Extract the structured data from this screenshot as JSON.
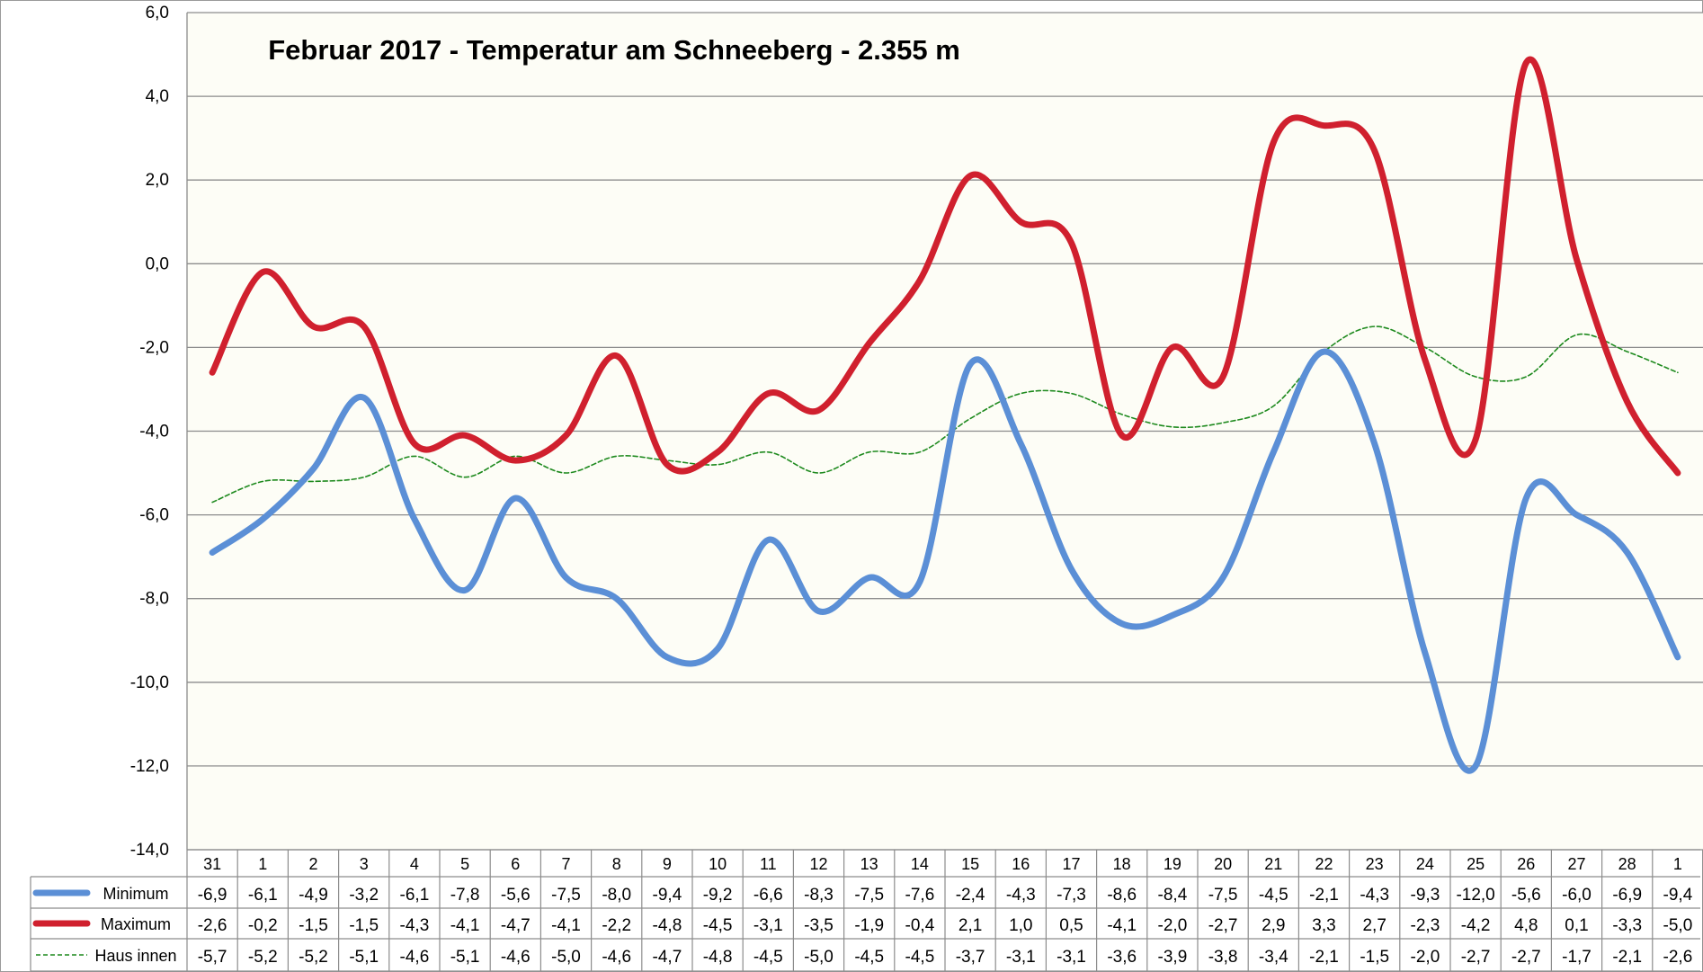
{
  "chart_data": {
    "type": "line",
    "title": "Februar 2017 - Temperatur am Schneeberg - 2.355 m",
    "xlabel": "",
    "ylabel": "",
    "ylim": [
      -14,
      6
    ],
    "yticks": [
      "6,0",
      "4,0",
      "2,0",
      "0,0",
      "-2,0",
      "-4,0",
      "-6,0",
      "-8,0",
      "-10,0",
      "-12,0",
      "-14,0"
    ],
    "grid": true,
    "legend": "table-below",
    "categories": [
      "31",
      "1",
      "2",
      "3",
      "4",
      "5",
      "6",
      "7",
      "8",
      "9",
      "10",
      "11",
      "12",
      "13",
      "14",
      "15",
      "16",
      "17",
      "18",
      "19",
      "20",
      "21",
      "22",
      "23",
      "24",
      "25",
      "26",
      "27",
      "28",
      "1"
    ],
    "series": [
      {
        "name": "Minimum",
        "color": "#5b8fd6",
        "values": [
          -6.9,
          -6.1,
          -4.9,
          -3.2,
          -6.1,
          -7.8,
          -5.6,
          -7.5,
          -8.0,
          -9.4,
          -9.2,
          -6.6,
          -8.3,
          -7.5,
          -7.6,
          -2.4,
          -4.3,
          -7.3,
          -8.6,
          -8.4,
          -7.5,
          -4.5,
          -2.1,
          -4.3,
          -9.3,
          -12.0,
          -5.6,
          -6.0,
          -6.9,
          -9.4
        ],
        "labels": [
          "-6,9",
          "-6,1",
          "-4,9",
          "-3,2",
          "-6,1",
          "-7,8",
          "-5,6",
          "-7,5",
          "-8,0",
          "-9,4",
          "-9,2",
          "-6,6",
          "-8,3",
          "-7,5",
          "-7,6",
          "-2,4",
          "-4,3",
          "-7,3",
          "-8,6",
          "-8,4",
          "-7,5",
          "-4,5",
          "-2,1",
          "-4,3",
          "-9,3",
          "-12,0",
          "-5,6",
          "-6,0",
          "-6,9",
          "-9,4"
        ]
      },
      {
        "name": "Maximum",
        "color": "#d0202e",
        "values": [
          -2.6,
          -0.2,
          -1.5,
          -1.5,
          -4.3,
          -4.1,
          -4.7,
          -4.1,
          -2.2,
          -4.8,
          -4.5,
          -3.1,
          -3.5,
          -1.9,
          -0.4,
          2.1,
          1.0,
          0.5,
          -4.1,
          -2.0,
          -2.7,
          2.9,
          3.3,
          2.7,
          -2.3,
          -4.2,
          4.8,
          0.1,
          -3.3,
          -5.0
        ],
        "labels": [
          "-2,6",
          "-0,2",
          "-1,5",
          "-1,5",
          "-4,3",
          "-4,1",
          "-4,7",
          "-4,1",
          "-2,2",
          "-4,8",
          "-4,5",
          "-3,1",
          "-3,5",
          "-1,9",
          "-0,4",
          "2,1",
          "1,0",
          "0,5",
          "-4,1",
          "-2,0",
          "-2,7",
          "2,9",
          "3,3",
          "2,7",
          "-2,3",
          "-4,2",
          "4,8",
          "0,1",
          "-3,3",
          "-5,0"
        ]
      },
      {
        "name": "Haus innen",
        "color": "#1e8a1e",
        "values": [
          -5.7,
          -5.2,
          -5.2,
          -5.1,
          -4.6,
          -5.1,
          -4.6,
          -5.0,
          -4.6,
          -4.7,
          -4.8,
          -4.5,
          -5.0,
          -4.5,
          -4.5,
          -3.7,
          -3.1,
          -3.1,
          -3.6,
          -3.9,
          -3.8,
          -3.4,
          -2.1,
          -1.5,
          -2.0,
          -2.7,
          -2.7,
          -1.7,
          -2.1,
          -2.6
        ],
        "labels": [
          "-5,7",
          "-5,2",
          "-5,2",
          "-5,1",
          "-4,6",
          "-5,1",
          "-4,6",
          "-5,0",
          "-4,6",
          "-4,7",
          "-4,8",
          "-4,5",
          "-5,0",
          "-4,5",
          "-4,5",
          "-3,7",
          "-3,1",
          "-3,1",
          "-3,6",
          "-3,9",
          "-3,8",
          "-3,4",
          "-2,1",
          "-1,5",
          "-2,0",
          "-2,7",
          "-2,7",
          "-1,7",
          "-2,1",
          "-2,6"
        ]
      }
    ]
  }
}
